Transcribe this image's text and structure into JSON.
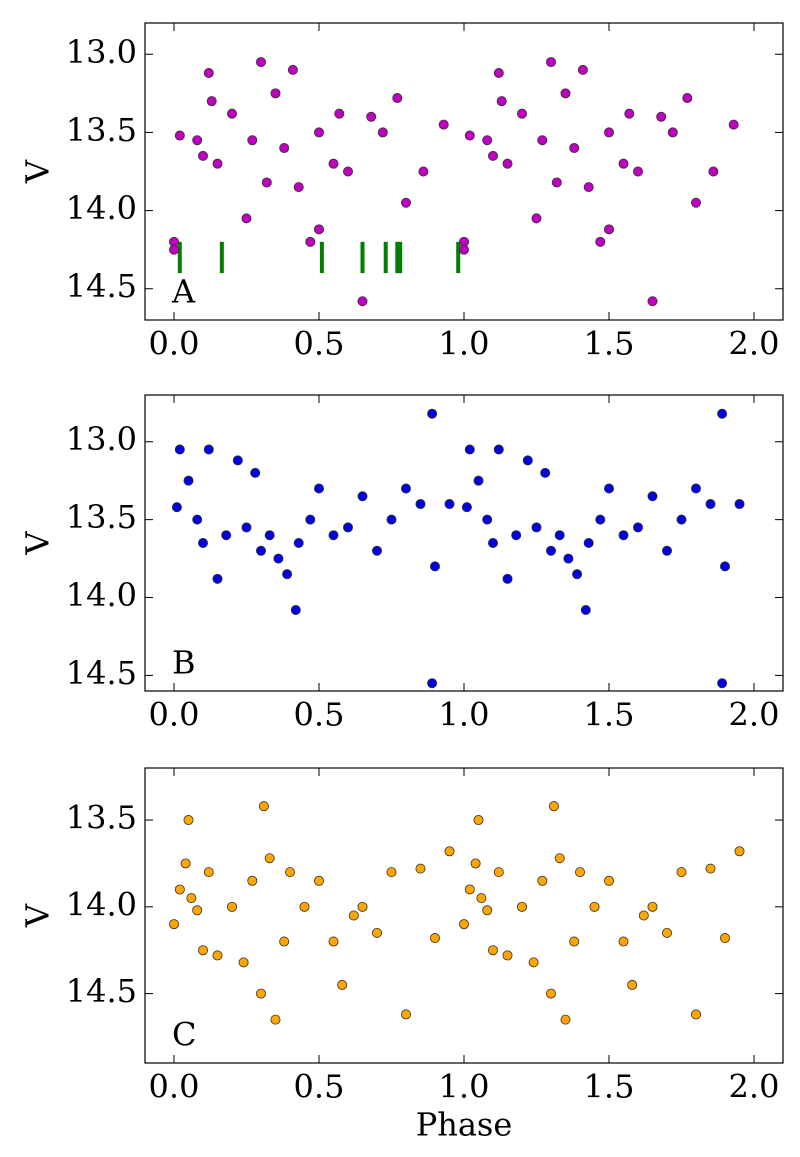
{
  "chart_data": [
    {
      "type": "scatter",
      "panel_label": "A",
      "ylabel": "V",
      "color": "#c000c0",
      "invert_y": true,
      "xlim": [
        -0.1,
        2.1
      ],
      "ylim": [
        12.8,
        14.7
      ],
      "xticks": [
        {
          "value": 0,
          "label": "0.0"
        },
        0.5,
        {
          "value": 1,
          "label": "1.0"
        },
        1.5,
        {
          "value": 2,
          "label": "2.0"
        }
      ],
      "yticks": [
        {
          "value": 13,
          "label": "13.0"
        },
        13.5,
        {
          "value": 14,
          "label": "14.0"
        },
        14.5
      ],
      "x": [
        0.0,
        0.0,
        0.02,
        0.08,
        0.1,
        0.12,
        0.13,
        0.15,
        0.2,
        0.25,
        0.27,
        0.3,
        0.32,
        0.35,
        0.38,
        0.41,
        0.43,
        0.47,
        0.5,
        0.5,
        0.55,
        0.57,
        0.6,
        0.65,
        0.68,
        0.72,
        0.77,
        0.8,
        0.86,
        0.93,
        1.0,
        1.0,
        1.02,
        1.08,
        1.1,
        1.12,
        1.13,
        1.15,
        1.2,
        1.25,
        1.27,
        1.3,
        1.32,
        1.35,
        1.38,
        1.41,
        1.43,
        1.47,
        1.5,
        1.5,
        1.55,
        1.57,
        1.6,
        1.65,
        1.68,
        1.72,
        1.77,
        1.8,
        1.86,
        1.93
      ],
      "y": [
        14.2,
        14.25,
        13.52,
        13.55,
        13.65,
        13.12,
        13.3,
        13.7,
        13.38,
        14.05,
        13.55,
        13.05,
        13.82,
        13.25,
        13.6,
        13.1,
        13.85,
        14.2,
        13.5,
        14.12,
        13.7,
        13.38,
        13.75,
        14.58,
        13.4,
        13.5,
        13.28,
        13.95,
        13.75,
        13.45,
        14.2,
        14.25,
        13.52,
        13.55,
        13.65,
        13.12,
        13.3,
        13.7,
        13.38,
        14.05,
        13.55,
        13.05,
        13.82,
        13.25,
        13.6,
        13.1,
        13.85,
        14.2,
        13.5,
        14.12,
        13.7,
        13.38,
        13.75,
        14.58,
        13.4,
        13.5,
        13.28,
        13.95,
        13.75,
        13.45
      ],
      "vlines": {
        "color": "#007f00",
        "x": [
          0.02,
          0.165,
          0.51,
          0.65,
          0.73,
          0.77,
          0.78,
          0.98
        ],
        "ymin": 14.2,
        "ymax": 14.4
      }
    },
    {
      "type": "scatter",
      "panel_label": "B",
      "ylabel": "V",
      "color": "#0000e0",
      "invert_y": true,
      "xlim": [
        -0.1,
        2.1
      ],
      "ylim": [
        12.7,
        14.6
      ],
      "xticks": [
        {
          "value": 0,
          "label": "0.0"
        },
        0.5,
        {
          "value": 1,
          "label": "1.0"
        },
        1.5,
        {
          "value": 2,
          "label": "2.0"
        }
      ],
      "yticks": [
        {
          "value": 13,
          "label": "13.0"
        },
        13.5,
        {
          "value": 14,
          "label": "14.0"
        },
        14.5
      ],
      "x": [
        0.01,
        0.02,
        0.05,
        0.08,
        0.1,
        0.12,
        0.15,
        0.18,
        0.22,
        0.25,
        0.28,
        0.3,
        0.33,
        0.36,
        0.39,
        0.42,
        0.43,
        0.47,
        0.5,
        0.55,
        0.6,
        0.65,
        0.7,
        0.75,
        0.8,
        0.85,
        0.89,
        0.89,
        0.9,
        0.95,
        1.01,
        1.02,
        1.05,
        1.08,
        1.1,
        1.12,
        1.15,
        1.18,
        1.22,
        1.25,
        1.28,
        1.3,
        1.33,
        1.36,
        1.39,
        1.42,
        1.43,
        1.47,
        1.5,
        1.55,
        1.6,
        1.65,
        1.7,
        1.75,
        1.8,
        1.85,
        1.89,
        1.89,
        1.9,
        1.95
      ],
      "y": [
        13.42,
        13.05,
        13.25,
        13.5,
        13.65,
        13.05,
        13.88,
        13.6,
        13.12,
        13.55,
        13.2,
        13.7,
        13.6,
        13.75,
        13.85,
        14.08,
        13.65,
        13.5,
        13.3,
        13.6,
        13.55,
        13.35,
        13.7,
        13.5,
        13.3,
        13.4,
        12.82,
        14.55,
        13.8,
        13.4,
        13.42,
        13.05,
        13.25,
        13.5,
        13.65,
        13.05,
        13.88,
        13.6,
        13.12,
        13.55,
        13.2,
        13.7,
        13.6,
        13.75,
        13.85,
        14.08,
        13.65,
        13.5,
        13.3,
        13.6,
        13.55,
        13.35,
        13.7,
        13.5,
        13.3,
        13.4,
        12.82,
        14.55,
        13.8,
        13.4
      ]
    },
    {
      "type": "scatter",
      "panel_label": "C",
      "ylabel": "V",
      "xlabel": "Phase",
      "color": "#ffa500",
      "invert_y": true,
      "xlim": [
        -0.1,
        2.1
      ],
      "ylim": [
        13.2,
        14.9
      ],
      "xticks": [
        {
          "value": 0,
          "label": "0.0"
        },
        0.5,
        {
          "value": 1,
          "label": "1.0"
        },
        1.5,
        {
          "value": 2,
          "label": "2.0"
        }
      ],
      "yticks": [
        13.5,
        {
          "value": 14,
          "label": "14.0"
        },
        14.5
      ],
      "x": [
        0.0,
        0.02,
        0.04,
        0.05,
        0.06,
        0.08,
        0.1,
        0.12,
        0.15,
        0.2,
        0.24,
        0.27,
        0.3,
        0.31,
        0.33,
        0.35,
        0.38,
        0.4,
        0.45,
        0.5,
        0.55,
        0.58,
        0.62,
        0.65,
        0.7,
        0.75,
        0.8,
        0.85,
        0.9,
        0.95,
        1.0,
        1.02,
        1.04,
        1.05,
        1.06,
        1.08,
        1.1,
        1.12,
        1.15,
        1.2,
        1.24,
        1.27,
        1.3,
        1.31,
        1.33,
        1.35,
        1.38,
        1.4,
        1.45,
        1.5,
        1.55,
        1.58,
        1.62,
        1.65,
        1.7,
        1.75,
        1.8,
        1.85,
        1.9,
        1.95
      ],
      "y": [
        14.1,
        13.9,
        13.75,
        13.5,
        13.95,
        14.02,
        14.25,
        13.8,
        14.28,
        14.0,
        14.32,
        13.85,
        14.5,
        13.42,
        13.72,
        14.65,
        14.2,
        13.8,
        14.0,
        13.85,
        14.2,
        14.45,
        14.05,
        14.0,
        14.15,
        13.8,
        14.62,
        13.78,
        14.18,
        13.68,
        14.1,
        13.9,
        13.75,
        13.5,
        13.95,
        14.02,
        14.25,
        13.8,
        14.28,
        14.0,
        14.32,
        13.85,
        14.5,
        13.42,
        13.72,
        14.65,
        14.2,
        13.8,
        14.0,
        13.85,
        14.2,
        14.45,
        14.05,
        14.0,
        14.15,
        13.8,
        14.62,
        13.78,
        14.18,
        13.68
      ]
    }
  ]
}
